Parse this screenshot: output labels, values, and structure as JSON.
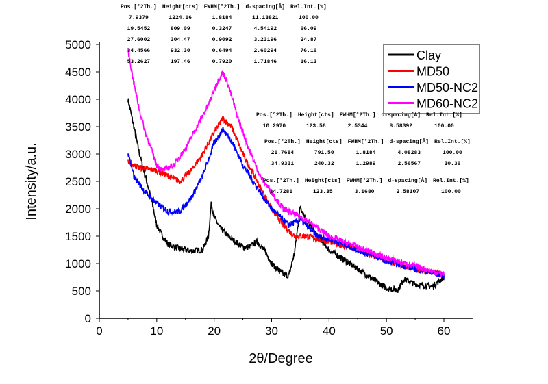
{
  "chart_data": {
    "type": "line",
    "xlabel": "2θ/Degree",
    "ylabel": "Intensity/a.u.",
    "xlim": [
      0,
      65
    ],
    "ylim": [
      0,
      5000
    ],
    "xticks": [
      0,
      10,
      20,
      30,
      40,
      50,
      60
    ],
    "yticks": [
      0,
      500,
      1000,
      1500,
      2000,
      2500,
      3000,
      3500,
      4000,
      4500,
      5000
    ],
    "legend_position": "top-right",
    "series": [
      {
        "name": "Clay",
        "color": "#000000",
        "x": [
          5,
          6,
          7,
          8,
          9,
          10,
          11,
          12,
          14,
          16,
          18,
          19,
          19.5,
          20,
          21,
          23,
          25,
          26,
          27.5,
          29,
          30,
          32,
          33,
          34,
          35,
          36,
          38,
          40,
          45,
          50,
          52,
          53,
          55,
          58,
          60
        ],
        "y": [
          4000,
          3500,
          3000,
          2600,
          2200,
          1700,
          1500,
          1350,
          1270,
          1230,
          1250,
          1500,
          2100,
          1850,
          1650,
          1450,
          1300,
          1300,
          1400,
          1200,
          1000,
          800,
          780,
          1200,
          2050,
          1800,
          1500,
          1250,
          900,
          550,
          520,
          720,
          620,
          580,
          750
        ]
      },
      {
        "name": "MD50",
        "color": "#ff0000",
        "x": [
          5,
          7,
          10,
          12,
          14,
          16,
          18,
          20,
          21.5,
          23,
          25,
          28,
          30,
          32,
          34,
          36,
          40,
          45,
          50,
          55,
          60
        ],
        "y": [
          2850,
          2750,
          2700,
          2600,
          2500,
          2700,
          3000,
          3400,
          3650,
          3500,
          3000,
          2400,
          2000,
          1700,
          1500,
          1500,
          1400,
          1250,
          1050,
          900,
          800
        ]
      },
      {
        "name": "MD50-NC2",
        "color": "#0000ff",
        "x": [
          5,
          6,
          8,
          10,
          12,
          14,
          16,
          18,
          20,
          21.5,
          23,
          25,
          28,
          30,
          33,
          35,
          38,
          40,
          45,
          50,
          55,
          60
        ],
        "y": [
          3000,
          2600,
          2300,
          2100,
          1950,
          1950,
          2200,
          2600,
          3200,
          3450,
          3250,
          2800,
          2300,
          2000,
          1700,
          1800,
          1500,
          1450,
          1250,
          1050,
          900,
          780
        ]
      },
      {
        "name": "MD60-NC2",
        "color": "#ff00ff",
        "x": [
          5,
          6,
          7,
          8,
          9,
          10,
          11,
          13,
          15,
          17,
          19,
          20.5,
          21.5,
          22.5,
          24,
          26,
          28,
          30,
          32,
          34,
          36,
          40,
          45,
          50,
          55,
          60
        ],
        "y": [
          4900,
          4300,
          3800,
          3400,
          3100,
          2800,
          2700,
          2800,
          3100,
          3500,
          3900,
          4300,
          4500,
          4250,
          3700,
          3100,
          2600,
          2300,
          2000,
          1900,
          1800,
          1500,
          1300,
          1100,
          950,
          800
        ]
      }
    ],
    "annotations": [
      {
        "header": [
          "Pos.[°2Th.]",
          "Height[cts]",
          "FWHM[°2Th.]",
          "d-spacing[Å]",
          "Rel.Int.[%]"
        ],
        "rows": [
          [
            "7.9379",
            "1224.16",
            "1.8184",
            "11.13821",
            "100.00"
          ],
          [
            "19.5452",
            "809.09",
            "0.3247",
            "4.54192",
            "66.09"
          ],
          [
            "27.6002",
            "304.47",
            "0.9092",
            "3.23196",
            "24.87"
          ],
          [
            "34.4566",
            "932.30",
            "0.6494",
            "2.60294",
            "76.16"
          ],
          [
            "53.2627",
            "197.46",
            "0.7920",
            "1.71846",
            "16.13"
          ]
        ]
      },
      {
        "header": [
          "Pos.[°2Th.]",
          "Height[cts]",
          "FWHM[°2Th.]",
          "d-spacing[Å]",
          "Rel.Int.[%]"
        ],
        "rows": [
          [
            "10.2970",
            "123.56",
            "2.5344",
            "8.58392",
            "100.00"
          ]
        ]
      },
      {
        "header": [
          "Pos.[°2Th.]",
          "Height[cts]",
          "FWHM[°2Th.]",
          "d-spacing[Å]",
          "Rel.Int.[%]"
        ],
        "rows": [
          [
            "21.7684",
            "791.50",
            "1.8184",
            "4.08283",
            "100.00"
          ],
          [
            "34.9331",
            "240.32",
            "1.2989",
            "2.56567",
            "30.36"
          ]
        ]
      },
      {
        "header": [
          "Pos.[°2Th.]",
          "Height[cts]",
          "FWHM[°2Th.]",
          "d-spacing[Å]",
          "Rel.Int.[%]"
        ],
        "rows": [
          [
            "34.7281",
            "123.35",
            "3.1680",
            "2.58107",
            "100.00"
          ]
        ]
      }
    ]
  }
}
